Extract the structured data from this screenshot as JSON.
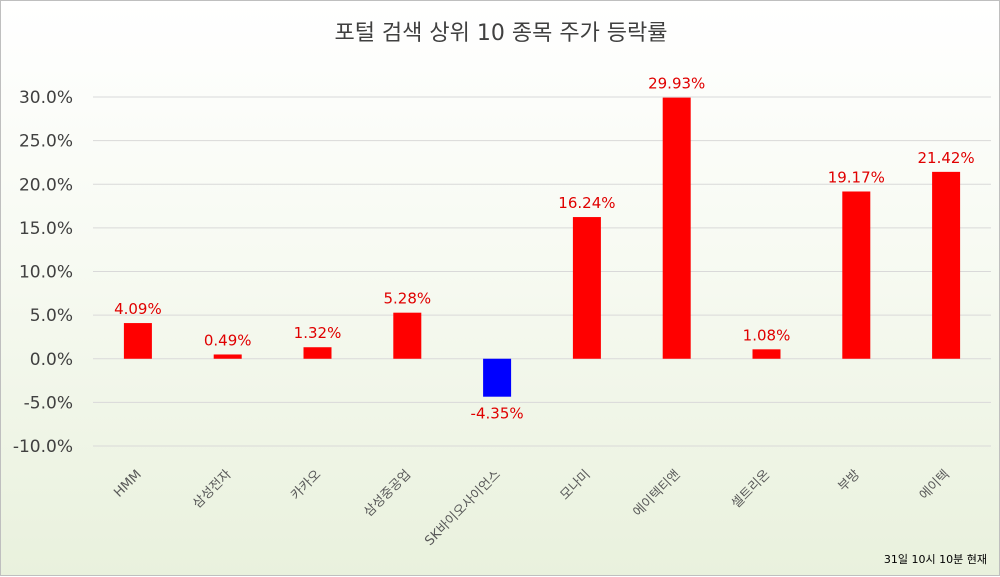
{
  "chart_data": {
    "type": "bar",
    "title": "포털 검색 상위 10 종목 주가 등락률",
    "categories": [
      "HMM",
      "삼성전자",
      "카카오",
      "삼성중공업",
      "SK바이오사이언스",
      "모나미",
      "에이텍티앤",
      "셀트리온",
      "부방",
      "에이텍"
    ],
    "values": [
      4.09,
      0.49,
      1.32,
      5.28,
      -4.35,
      16.24,
      29.93,
      1.08,
      19.17,
      21.42
    ],
    "data_labels": [
      "4.09%",
      "0.49%",
      "1.32%",
      "5.28%",
      "-4.35%",
      "16.24%",
      "29.93%",
      "1.08%",
      "19.17%",
      "21.42%"
    ],
    "ylim": [
      -10,
      30
    ],
    "yticks": [
      30,
      25,
      20,
      15,
      10,
      5,
      0,
      -5,
      -10
    ],
    "ytick_labels": [
      "30.0%",
      "25.0%",
      "20.0%",
      "15.0%",
      "10.0%",
      "5.0%",
      "0.0%",
      "-5.0%",
      "-10.0%"
    ],
    "xlabel": "",
    "ylabel": "",
    "grid": true,
    "colors": {
      "positive": "#ff0000",
      "negative": "#0000ff",
      "label": "#e00000",
      "grid": "#d9d9d9"
    }
  },
  "footnote": "31일 10시 10분 현재"
}
